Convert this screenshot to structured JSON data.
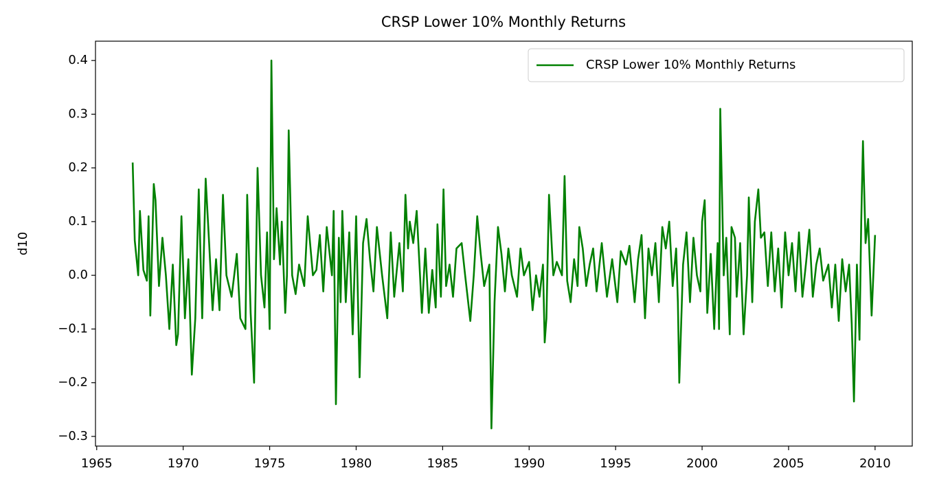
{
  "chart_data": {
    "type": "line",
    "title": "CRSP Lower 10% Monthly Returns",
    "y_label": "d10",
    "legend": "upper right",
    "grid": false,
    "xlim": [
      1964.93,
      2012.15
    ],
    "ylim": [
      -0.318,
      0.436
    ],
    "xticks": [
      1965,
      1970,
      1975,
      1980,
      1985,
      1990,
      1995,
      2000,
      2005,
      2010
    ],
    "yticks": [
      {
        "value": -0.3,
        "label": "−0.3"
      },
      {
        "value": -0.2,
        "label": "−0.2"
      },
      {
        "value": -0.1,
        "label": "−0.1"
      },
      {
        "value": 0,
        "label": "0.0"
      },
      0.1,
      0.2,
      0.3,
      0.4
    ],
    "series": [
      {
        "name": "CRSP Lower 10% Monthly Returns",
        "color": "#008000",
        "x": [
          1967.08,
          1967.2,
          1967.4,
          1967.5,
          1967.7,
          1967.9,
          1968.0,
          1968.1,
          1968.3,
          1968.4,
          1968.6,
          1968.8,
          1969.0,
          1969.2,
          1969.4,
          1969.6,
          1969.7,
          1969.9,
          1970.1,
          1970.3,
          1970.5,
          1970.7,
          1970.9,
          1971.1,
          1971.3,
          1971.5,
          1971.7,
          1971.9,
          1972.1,
          1972.3,
          1972.5,
          1972.8,
          1973.1,
          1973.3,
          1973.6,
          1973.7,
          1973.9,
          1974.1,
          1974.3,
          1974.5,
          1974.7,
          1974.85,
          1975.0,
          1975.1,
          1975.25,
          1975.4,
          1975.6,
          1975.7,
          1975.9,
          1976.0,
          1976.1,
          1976.3,
          1976.5,
          1976.7,
          1977.0,
          1977.2,
          1977.5,
          1977.7,
          1977.9,
          1978.1,
          1978.3,
          1978.6,
          1978.7,
          1978.83,
          1979.0,
          1979.1,
          1979.2,
          1979.4,
          1979.6,
          1979.8,
          1980.0,
          1980.2,
          1980.4,
          1980.6,
          1980.8,
          1981.0,
          1981.2,
          1981.5,
          1981.8,
          1982.0,
          1982.2,
          1982.5,
          1982.7,
          1982.85,
          1983.0,
          1983.1,
          1983.3,
          1983.5,
          1983.7,
          1983.8,
          1984.0,
          1984.2,
          1984.4,
          1984.6,
          1984.7,
          1984.9,
          1985.05,
          1985.2,
          1985.4,
          1985.6,
          1985.8,
          1986.1,
          1986.3,
          1986.6,
          1986.8,
          1987.0,
          1987.2,
          1987.4,
          1987.7,
          1987.82,
          1988.0,
          1988.2,
          1988.4,
          1988.6,
          1988.8,
          1989.0,
          1989.3,
          1989.5,
          1989.7,
          1990.0,
          1990.2,
          1990.4,
          1990.6,
          1990.8,
          1990.9,
          1991.0,
          1991.15,
          1991.4,
          1991.6,
          1991.9,
          1992.05,
          1992.2,
          1992.4,
          1992.6,
          1992.8,
          1992.9,
          1993.1,
          1993.3,
          1993.5,
          1993.7,
          1993.9,
          1994.2,
          1994.5,
          1994.8,
          1995.1,
          1995.3,
          1995.6,
          1995.8,
          1996.1,
          1996.3,
          1996.5,
          1996.7,
          1996.9,
          1997.1,
          1997.3,
          1997.5,
          1997.7,
          1997.9,
          1998.1,
          1998.3,
          1998.5,
          1998.6,
          1998.68,
          1998.9,
          1999.1,
          1999.3,
          1999.5,
          1999.7,
          1999.9,
          2000.0,
          2000.15,
          2000.3,
          2000.5,
          2000.7,
          2000.9,
          2000.98,
          2001.05,
          2001.25,
          2001.4,
          2001.6,
          2001.7,
          2001.9,
          2002.0,
          2002.2,
          2002.4,
          2002.6,
          2002.7,
          2002.9,
          2003.05,
          2003.25,
          2003.4,
          2003.6,
          2003.8,
          2004.0,
          2004.2,
          2004.4,
          2004.6,
          2004.8,
          2005.0,
          2005.2,
          2005.4,
          2005.6,
          2005.8,
          2006.0,
          2006.2,
          2006.4,
          2006.6,
          2006.8,
          2007.0,
          2007.3,
          2007.5,
          2007.7,
          2007.9,
          2008.1,
          2008.3,
          2008.5,
          2008.65,
          2008.78,
          2008.95,
          2009.1,
          2009.2,
          2009.3,
          2009.45,
          2009.6,
          2009.8,
          2010.0
        ],
        "values": [
          0.21,
          0.065,
          0.0,
          0.12,
          0.01,
          -0.01,
          0.11,
          -0.075,
          0.17,
          0.14,
          -0.02,
          0.07,
          0.0,
          -0.1,
          0.02,
          -0.13,
          -0.11,
          0.11,
          -0.08,
          0.03,
          -0.185,
          -0.08,
          0.16,
          -0.08,
          0.18,
          0.06,
          -0.065,
          0.03,
          -0.065,
          0.15,
          0.0,
          -0.04,
          0.04,
          -0.08,
          -0.1,
          0.15,
          -0.07,
          -0.2,
          0.2,
          0.0,
          -0.06,
          0.08,
          -0.1,
          0.4,
          0.03,
          0.125,
          0.02,
          0.1,
          -0.07,
          0.0,
          0.27,
          0.0,
          -0.035,
          0.02,
          -0.02,
          0.11,
          0.0,
          0.01,
          0.075,
          -0.03,
          0.09,
          0.0,
          0.12,
          -0.24,
          0.07,
          -0.05,
          0.12,
          -0.05,
          0.08,
          -0.11,
          0.11,
          -0.19,
          0.06,
          0.105,
          0.03,
          -0.03,
          0.09,
          0.0,
          -0.08,
          0.08,
          -0.04,
          0.06,
          -0.03,
          0.15,
          0.05,
          0.1,
          0.06,
          0.12,
          -0.005,
          -0.07,
          0.05,
          -0.07,
          0.01,
          -0.06,
          0.095,
          -0.04,
          0.16,
          -0.02,
          0.02,
          -0.04,
          0.05,
          0.06,
          0.0,
          -0.085,
          0.0,
          0.11,
          0.04,
          -0.02,
          0.02,
          -0.285,
          -0.05,
          0.09,
          0.04,
          -0.03,
          0.05,
          0.0,
          -0.04,
          0.05,
          0.0,
          0.025,
          -0.065,
          0.0,
          -0.04,
          0.02,
          -0.125,
          -0.08,
          0.15,
          0.0,
          0.025,
          0.0,
          0.185,
          -0.01,
          -0.05,
          0.03,
          -0.02,
          0.09,
          0.05,
          -0.02,
          0.02,
          0.05,
          -0.03,
          0.06,
          -0.04,
          0.03,
          -0.05,
          0.045,
          0.02,
          0.055,
          -0.05,
          0.03,
          0.075,
          -0.08,
          0.05,
          0.0,
          0.06,
          -0.05,
          0.09,
          0.05,
          0.1,
          -0.02,
          0.05,
          -0.05,
          -0.2,
          0.02,
          0.08,
          -0.05,
          0.07,
          0.0,
          -0.03,
          0.1,
          0.14,
          -0.07,
          0.04,
          -0.1,
          0.06,
          -0.1,
          0.31,
          0.0,
          0.07,
          -0.11,
          0.09,
          0.07,
          -0.04,
          0.06,
          -0.11,
          0.0,
          0.145,
          -0.05,
          0.1,
          0.16,
          0.07,
          0.08,
          -0.02,
          0.08,
          -0.03,
          0.05,
          -0.06,
          0.08,
          0.0,
          0.06,
          -0.03,
          0.08,
          -0.04,
          0.02,
          0.085,
          -0.04,
          0.02,
          0.05,
          -0.01,
          0.02,
          -0.06,
          0.02,
          -0.085,
          0.03,
          -0.03,
          0.02,
          -0.09,
          -0.235,
          0.02,
          -0.12,
          0.1,
          0.25,
          0.06,
          0.105,
          -0.075,
          0.075
        ]
      }
    ]
  }
}
